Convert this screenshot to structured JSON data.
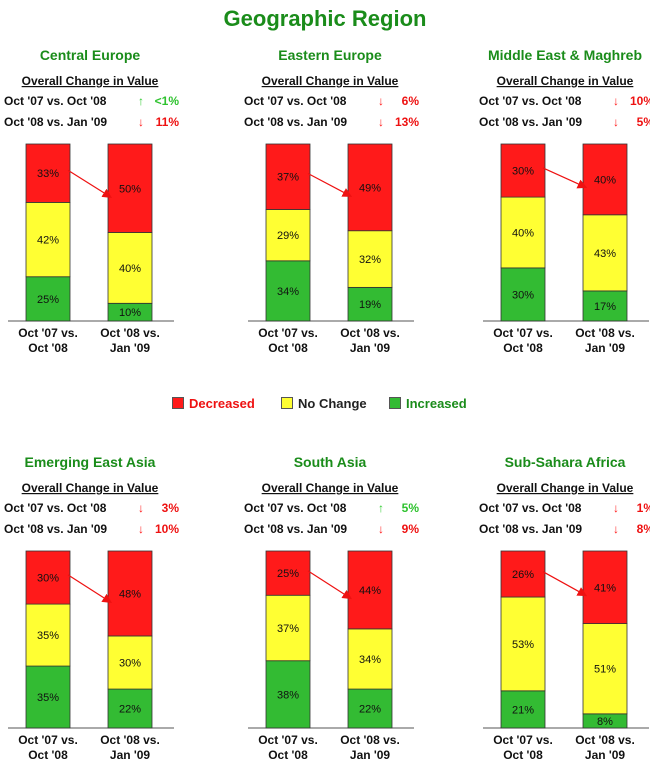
{
  "title": "Geographic Region",
  "colors": {
    "title": "#1a8c1a",
    "decreased": "#ff1a1a",
    "no_change": "#ffff33",
    "increased": "#33bb33",
    "up_arrow": "#33cc33",
    "down_arrow": "#ff1a1a",
    "text_up": "#2ec22e",
    "text_down": "#ee1111"
  },
  "legend": {
    "decreased": "Decreased",
    "no_change": "No Change",
    "increased": "Increased"
  },
  "chart_data": [
    {
      "type": "bar",
      "stacked": true,
      "title": "Central Europe",
      "subtitle": "Overall Change in Value",
      "changes": [
        {
          "label": "Oct '07 vs. Oct '08",
          "direction": "up",
          "value": "<1%"
        },
        {
          "label": "Oct '08 vs. Jan '09",
          "direction": "down",
          "value": "11%"
        }
      ],
      "categories": [
        "Oct '07 vs. Oct '08",
        "Oct '08 vs. Jan '09"
      ],
      "category_lines": [
        [
          "Oct '07 vs.",
          "Oct '08"
        ],
        [
          "Oct '08 vs.",
          "Jan '09"
        ]
      ],
      "series": [
        {
          "name": "Increased",
          "values": [
            25,
            10
          ]
        },
        {
          "name": "No Change",
          "values": [
            42,
            40
          ]
        },
        {
          "name": "Decreased",
          "values": [
            33,
            50
          ]
        }
      ]
    },
    {
      "type": "bar",
      "stacked": true,
      "title": "Eastern Europe",
      "subtitle": "Overall Change in Value",
      "changes": [
        {
          "label": "Oct '07 vs. Oct '08",
          "direction": "down",
          "value": "6%"
        },
        {
          "label": "Oct '08 vs. Jan '09",
          "direction": "down",
          "value": "13%"
        }
      ],
      "categories": [
        "Oct '07 vs. Oct '08",
        "Oct '08 vs. Jan '09"
      ],
      "category_lines": [
        [
          "Oct '07 vs.",
          "Oct '08"
        ],
        [
          "Oct '08 vs.",
          "Jan '09"
        ]
      ],
      "series": [
        {
          "name": "Increased",
          "values": [
            34,
            19
          ]
        },
        {
          "name": "No Change",
          "values": [
            29,
            32
          ]
        },
        {
          "name": "Decreased",
          "values": [
            37,
            49
          ]
        }
      ]
    },
    {
      "type": "bar",
      "stacked": true,
      "title": "Middle East & Maghreb",
      "subtitle": "Overall Change in Value",
      "changes": [
        {
          "label": "Oct '07 vs. Oct '08",
          "direction": "down",
          "value": "10%"
        },
        {
          "label": "Oct '08 vs. Jan '09",
          "direction": "down",
          "value": "5%"
        }
      ],
      "categories": [
        "Oct '07 vs. Oct '08",
        "Oct '08 vs. Jan '09"
      ],
      "category_lines": [
        [
          "Oct '07 vs.",
          "Oct '08"
        ],
        [
          "Oct '08 vs.",
          "Jan '09"
        ]
      ],
      "series": [
        {
          "name": "Increased",
          "values": [
            30,
            17
          ]
        },
        {
          "name": "No Change",
          "values": [
            40,
            43
          ]
        },
        {
          "name": "Decreased",
          "values": [
            30,
            40
          ]
        }
      ]
    },
    {
      "type": "bar",
      "stacked": true,
      "title": "Emerging East Asia",
      "subtitle": "Overall Change in Value",
      "changes": [
        {
          "label": "Oct '07 vs. Oct '08",
          "direction": "down",
          "value": "3%"
        },
        {
          "label": "Oct '08 vs. Jan '09",
          "direction": "down",
          "value": "10%"
        }
      ],
      "categories": [
        "Oct '07 vs. Oct '08",
        "Oct '08 vs. Jan '09"
      ],
      "category_lines": [
        [
          "Oct '07 vs.",
          "Oct '08"
        ],
        [
          "Oct '08 vs.",
          "Jan '09"
        ]
      ],
      "series": [
        {
          "name": "Increased",
          "values": [
            35,
            22
          ]
        },
        {
          "name": "No Change",
          "values": [
            35,
            30
          ]
        },
        {
          "name": "Decreased",
          "values": [
            30,
            48
          ]
        }
      ]
    },
    {
      "type": "bar",
      "stacked": true,
      "title": "South Asia",
      "subtitle": "Overall Change in Value",
      "changes": [
        {
          "label": "Oct '07 vs. Oct '08",
          "direction": "up",
          "value": "5%"
        },
        {
          "label": "Oct '08 vs. Jan '09",
          "direction": "down",
          "value": "9%"
        }
      ],
      "categories": [
        "Oct '07 vs. Oct '08",
        "Oct '08 vs. Jan '09"
      ],
      "category_lines": [
        [
          "Oct '07 vs.",
          "Oct '08"
        ],
        [
          "Oct '08 vs.",
          "Jan '09"
        ]
      ],
      "series": [
        {
          "name": "Increased",
          "values": [
            38,
            22
          ]
        },
        {
          "name": "No Change",
          "values": [
            37,
            34
          ]
        },
        {
          "name": "Decreased",
          "values": [
            25,
            44
          ]
        }
      ]
    },
    {
      "type": "bar",
      "stacked": true,
      "title": "Sub-Sahara Africa",
      "subtitle": "Overall Change in Value",
      "changes": [
        {
          "label": "Oct '07 vs. Oct '08",
          "direction": "down",
          "value": "1%"
        },
        {
          "label": "Oct '08 vs. Jan '09",
          "direction": "down",
          "value": "8%"
        }
      ],
      "categories": [
        "Oct '07 vs. Oct '08",
        "Oct '08 vs. Jan '09"
      ],
      "category_lines": [
        [
          "Oct '07 vs.",
          "Oct '08"
        ],
        [
          "Oct '08 vs.",
          "Jan '09"
        ]
      ],
      "series": [
        {
          "name": "Increased",
          "values": [
            21,
            8
          ]
        },
        {
          "name": "No Change",
          "values": [
            53,
            51
          ]
        },
        {
          "name": "Decreased",
          "values": [
            26,
            41
          ]
        }
      ]
    }
  ]
}
